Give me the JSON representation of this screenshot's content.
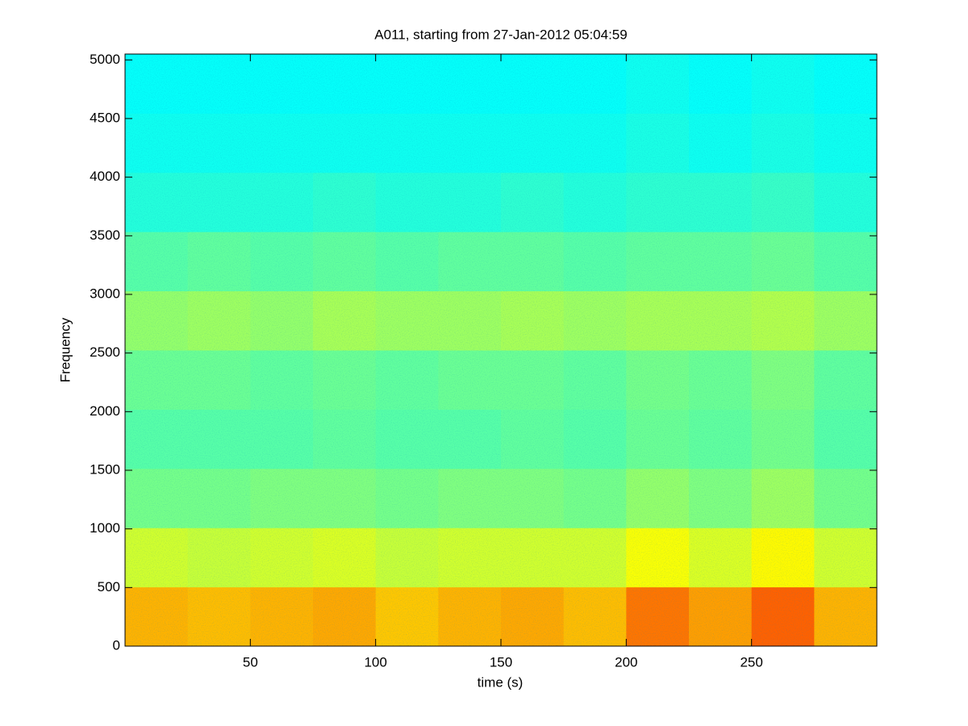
{
  "chart_data": {
    "type": "spectrogram",
    "title": "A011, starting from 27-Jan-2012 05:04:59",
    "x_label": "time (s)",
    "y_label": "Frequency",
    "xlim": [
      0,
      300
    ],
    "ylim": [
      0,
      5050
    ],
    "xticks": [
      50,
      100,
      150,
      200,
      250
    ],
    "yticks": [
      0,
      500,
      1000,
      1500,
      2000,
      2500,
      3000,
      3500,
      4000,
      4500,
      5000
    ],
    "colormap": "jet",
    "zlim": [
      0,
      1
    ],
    "xbins": [
      0,
      25,
      50,
      75,
      100,
      125,
      150,
      175,
      200,
      225,
      250,
      275,
      300
    ],
    "ybins": [
      0,
      505,
      1010,
      1515,
      2020,
      2525,
      3030,
      3535,
      4040,
      4545,
      5050
    ],
    "z": [
      [
        0.7,
        0.69,
        0.7,
        0.71,
        0.68,
        0.7,
        0.71,
        0.69,
        0.76,
        0.72,
        0.78,
        0.7
      ],
      [
        0.58,
        0.57,
        0.58,
        0.59,
        0.57,
        0.58,
        0.58,
        0.58,
        0.62,
        0.59,
        0.63,
        0.58
      ],
      [
        0.49,
        0.49,
        0.5,
        0.5,
        0.49,
        0.5,
        0.5,
        0.49,
        0.52,
        0.5,
        0.53,
        0.49
      ],
      [
        0.46,
        0.46,
        0.46,
        0.47,
        0.46,
        0.46,
        0.47,
        0.46,
        0.48,
        0.47,
        0.49,
        0.46
      ],
      [
        0.48,
        0.48,
        0.47,
        0.48,
        0.47,
        0.48,
        0.48,
        0.47,
        0.49,
        0.48,
        0.5,
        0.47
      ],
      [
        0.52,
        0.53,
        0.52,
        0.54,
        0.53,
        0.53,
        0.54,
        0.53,
        0.54,
        0.54,
        0.55,
        0.53
      ],
      [
        0.46,
        0.47,
        0.46,
        0.47,
        0.46,
        0.47,
        0.47,
        0.46,
        0.47,
        0.47,
        0.48,
        0.46
      ],
      [
        0.41,
        0.41,
        0.41,
        0.42,
        0.41,
        0.41,
        0.42,
        0.41,
        0.42,
        0.42,
        0.43,
        0.41
      ],
      [
        0.39,
        0.39,
        0.39,
        0.39,
        0.39,
        0.39,
        0.39,
        0.39,
        0.4,
        0.39,
        0.4,
        0.39
      ],
      [
        0.38,
        0.38,
        0.38,
        0.38,
        0.38,
        0.38,
        0.38,
        0.38,
        0.39,
        0.38,
        0.39,
        0.38
      ]
    ]
  }
}
